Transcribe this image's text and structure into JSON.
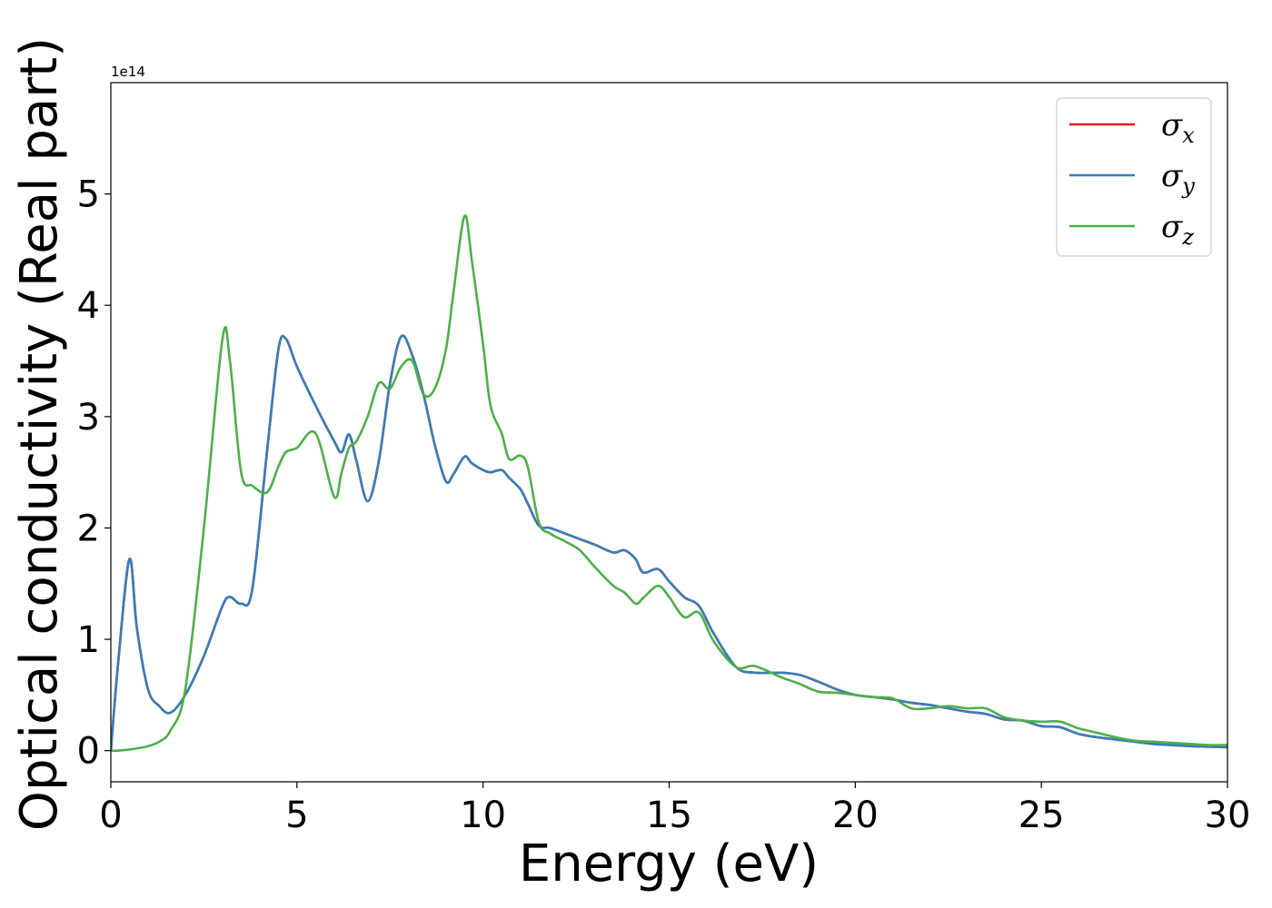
{
  "chart_data": {
    "type": "line",
    "xlabel": "Energy (eV)",
    "ylabel": "Optical conductivity (Real part)",
    "y_offset_text": "1e14",
    "xlim": [
      0,
      30
    ],
    "ylim": [
      -0.28,
      6.0
    ],
    "xticks": [
      0,
      5,
      10,
      15,
      20,
      25,
      30
    ],
    "xtick_labels": [
      "0",
      "5",
      "10",
      "15",
      "20",
      "25",
      "30"
    ],
    "yticks": [
      0,
      1,
      2,
      3,
      4,
      5
    ],
    "ytick_labels": [
      "0",
      "1",
      "2",
      "3",
      "4",
      "5"
    ],
    "grid": false,
    "legend_position": "top-right",
    "x": [
      0,
      0.2,
      0.5,
      0.7,
      1.0,
      1.3,
      1.6,
      2.0,
      2.5,
      3.0,
      3.2,
      3.5,
      3.8,
      4.2,
      4.5,
      4.7,
      5.0,
      5.5,
      6.0,
      6.2,
      6.4,
      6.6,
      6.9,
      7.2,
      7.5,
      7.8,
      8.1,
      8.4,
      8.7,
      9.0,
      9.2,
      9.5,
      9.7,
      10.0,
      10.2,
      10.5,
      10.7,
      11.0,
      11.2,
      11.5,
      11.8,
      12.2,
      12.6,
      13.0,
      13.5,
      13.8,
      14.1,
      14.3,
      14.7,
      15.0,
      15.4,
      15.8,
      16.2,
      16.8,
      17.3,
      18.0,
      18.5,
      19.0,
      19.5,
      20.0,
      20.5,
      21.0,
      21.5,
      22.0,
      22.5,
      23.0,
      23.5,
      24.0,
      24.5,
      25.0,
      25.5,
      26.0,
      26.5,
      27.0,
      27.5,
      28.0,
      28.5,
      29.0,
      29.5,
      30.0
    ],
    "series": [
      {
        "name": "σx",
        "color": "#e41a1c",
        "values": [
          0.0,
          0.8,
          1.72,
          1.1,
          0.55,
          0.4,
          0.34,
          0.5,
          0.85,
          1.3,
          1.38,
          1.32,
          1.45,
          2.7,
          3.6,
          3.7,
          3.45,
          3.1,
          2.78,
          2.68,
          2.84,
          2.6,
          2.24,
          2.6,
          3.3,
          3.72,
          3.55,
          3.2,
          2.75,
          2.42,
          2.48,
          2.64,
          2.58,
          2.52,
          2.5,
          2.52,
          2.45,
          2.35,
          2.22,
          2.02,
          2.0,
          1.95,
          1.9,
          1.85,
          1.78,
          1.8,
          1.72,
          1.6,
          1.63,
          1.52,
          1.38,
          1.3,
          1.05,
          0.75,
          0.7,
          0.7,
          0.68,
          0.62,
          0.55,
          0.5,
          0.48,
          0.46,
          0.43,
          0.41,
          0.38,
          0.35,
          0.33,
          0.28,
          0.27,
          0.22,
          0.21,
          0.15,
          0.12,
          0.1,
          0.08,
          0.06,
          0.05,
          0.04,
          0.035,
          0.03
        ]
      },
      {
        "name": "σy",
        "color": "#377eb8",
        "values": [
          0.0,
          0.8,
          1.72,
          1.1,
          0.55,
          0.4,
          0.34,
          0.5,
          0.85,
          1.3,
          1.38,
          1.32,
          1.45,
          2.7,
          3.6,
          3.7,
          3.45,
          3.1,
          2.78,
          2.68,
          2.84,
          2.6,
          2.24,
          2.6,
          3.3,
          3.72,
          3.55,
          3.2,
          2.75,
          2.42,
          2.48,
          2.64,
          2.58,
          2.52,
          2.5,
          2.52,
          2.45,
          2.35,
          2.22,
          2.02,
          2.0,
          1.95,
          1.9,
          1.85,
          1.78,
          1.8,
          1.72,
          1.6,
          1.63,
          1.52,
          1.38,
          1.3,
          1.05,
          0.75,
          0.7,
          0.7,
          0.68,
          0.62,
          0.55,
          0.5,
          0.48,
          0.46,
          0.43,
          0.41,
          0.38,
          0.35,
          0.33,
          0.28,
          0.27,
          0.22,
          0.21,
          0.15,
          0.12,
          0.1,
          0.08,
          0.06,
          0.05,
          0.04,
          0.035,
          0.03
        ]
      },
      {
        "name": "σz",
        "color": "#4daf4a",
        "values": [
          0.0,
          0.0,
          0.01,
          0.02,
          0.04,
          0.08,
          0.18,
          0.55,
          2.0,
          3.7,
          3.5,
          2.5,
          2.38,
          2.32,
          2.55,
          2.68,
          2.72,
          2.85,
          2.28,
          2.5,
          2.72,
          2.78,
          3.0,
          3.3,
          3.25,
          3.45,
          3.5,
          3.2,
          3.25,
          3.6,
          4.1,
          4.8,
          4.4,
          3.65,
          3.1,
          2.85,
          2.62,
          2.65,
          2.55,
          2.05,
          1.95,
          1.88,
          1.8,
          1.65,
          1.48,
          1.42,
          1.32,
          1.37,
          1.48,
          1.38,
          1.2,
          1.24,
          0.98,
          0.75,
          0.76,
          0.66,
          0.6,
          0.53,
          0.52,
          0.5,
          0.48,
          0.47,
          0.38,
          0.38,
          0.4,
          0.38,
          0.38,
          0.3,
          0.27,
          0.26,
          0.26,
          0.2,
          0.16,
          0.12,
          0.09,
          0.08,
          0.07,
          0.06,
          0.05,
          0.05
        ]
      }
    ]
  }
}
